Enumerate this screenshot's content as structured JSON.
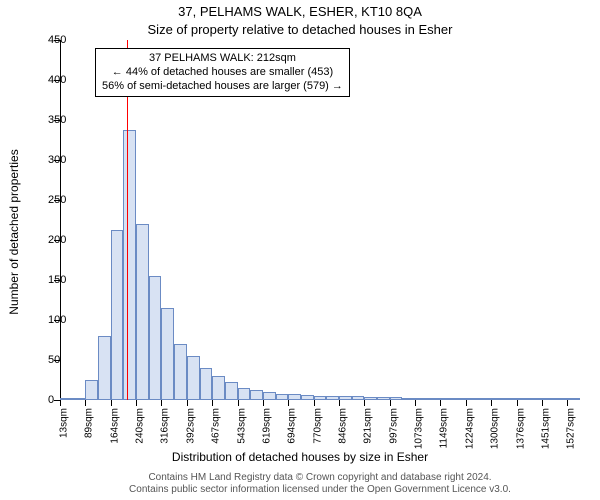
{
  "title_line1": "37, PELHAMS WALK, ESHER, KT10 8QA",
  "title_line2": "Size of property relative to detached houses in Esher",
  "y_axis_label": "Number of detached properties",
  "x_axis_label": "Distribution of detached houses by size in Esher",
  "footer_line1": "Contains HM Land Registry data © Crown copyright and database right 2024.",
  "footer_line2": "Contains public sector information licensed under the Open Government Licence v3.0.",
  "chart": {
    "type": "histogram",
    "background_color": "#ffffff",
    "bar_fill": "#d8e2f3",
    "bar_border": "#6b8bc4",
    "ylim": [
      0,
      450
    ],
    "ytick_step": 50,
    "yticks": [
      0,
      50,
      100,
      150,
      200,
      250,
      300,
      350,
      400,
      450
    ],
    "xtick_labels": [
      "13sqm",
      "89sqm",
      "164sqm",
      "240sqm",
      "316sqm",
      "392sqm",
      "467sqm",
      "543sqm",
      "619sqm",
      "694sqm",
      "770sqm",
      "846sqm",
      "921sqm",
      "997sqm",
      "1073sqm",
      "1149sqm",
      "1224sqm",
      "1300sqm",
      "1376sqm",
      "1451sqm",
      "1527sqm"
    ],
    "xtick_every": 2,
    "bars": [
      2,
      3,
      25,
      80,
      212,
      338,
      220,
      155,
      115,
      70,
      55,
      40,
      30,
      22,
      15,
      12,
      10,
      8,
      7,
      6,
      5,
      5,
      5,
      5,
      4,
      4,
      4,
      3,
      3,
      3,
      3,
      2,
      2,
      2,
      2,
      1,
      1,
      1,
      1,
      1,
      1
    ],
    "marker": {
      "value_sqm": 212,
      "bar_index_center": 5.3,
      "color": "#ff0000"
    },
    "annotation": {
      "line1": "37 PELHAMS WALK: 212sqm",
      "line2": "← 44% of detached houses are smaller (453)",
      "line3": "56% of semi-detached houses are larger (579) →"
    }
  },
  "fontsize": {
    "title": 13,
    "axis_label": 12,
    "tick": 11,
    "xtick": 10,
    "annotation": 11,
    "footer": 10
  }
}
